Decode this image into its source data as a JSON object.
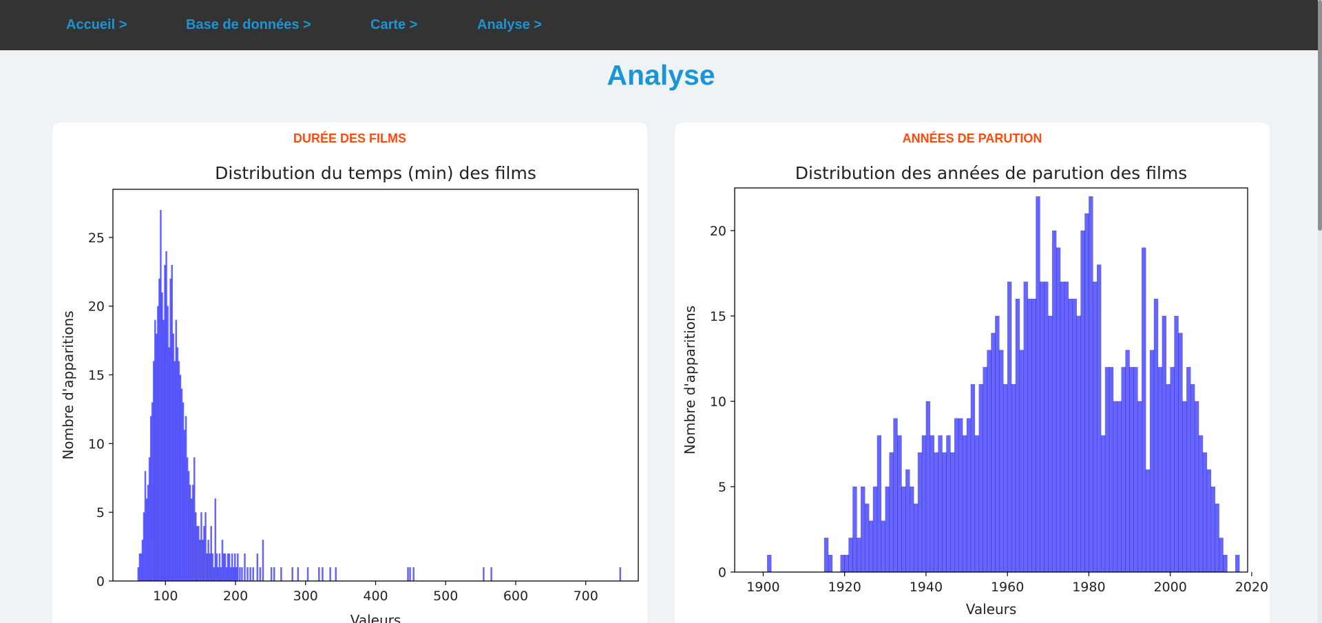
{
  "nav": {
    "items": [
      {
        "label": "Accueil >"
      },
      {
        "label": "Base de données >"
      },
      {
        "label": "Carte >"
      },
      {
        "label": "Analyse >"
      }
    ]
  },
  "page": {
    "title": "Analyse"
  },
  "colors": {
    "nav_bg": "#333333",
    "link": "#1b95d4",
    "card_title": "#ff4a0a",
    "bar_fill": "#0000ff"
  },
  "cards": [
    {
      "title": "DURÉE DES FILMS"
    },
    {
      "title": "ANNÉES DE PARUTION"
    }
  ],
  "chart_data": [
    {
      "type": "bar",
      "title": "Distribution du temps (min) des films",
      "xlabel": "Valeurs",
      "ylabel": "Nombre d'apparitions",
      "xlim": [
        25,
        775
      ],
      "ylim": [
        0,
        28.5
      ],
      "xticks": [
        100,
        200,
        300,
        400,
        500,
        600,
        700
      ],
      "yticks": [
        0,
        5,
        10,
        15,
        20,
        25
      ],
      "bin_width": 2.5,
      "grid": false,
      "bars": [
        [
          60,
          1
        ],
        [
          62,
          2
        ],
        [
          64,
          2
        ],
        [
          66,
          3
        ],
        [
          68,
          5
        ],
        [
          70,
          8
        ],
        [
          72,
          6
        ],
        [
          74,
          7
        ],
        [
          76,
          9
        ],
        [
          78,
          12
        ],
        [
          80,
          13
        ],
        [
          82,
          16
        ],
        [
          84,
          19
        ],
        [
          86,
          18
        ],
        [
          88,
          20
        ],
        [
          90,
          22
        ],
        [
          92,
          27
        ],
        [
          94,
          21
        ],
        [
          96,
          19
        ],
        [
          98,
          23
        ],
        [
          100,
          24
        ],
        [
          102,
          20
        ],
        [
          104,
          17
        ],
        [
          106,
          22
        ],
        [
          108,
          23
        ],
        [
          110,
          18
        ],
        [
          112,
          16
        ],
        [
          114,
          19
        ],
        [
          116,
          17
        ],
        [
          118,
          16
        ],
        [
          120,
          15
        ],
        [
          122,
          14
        ],
        [
          124,
          13
        ],
        [
          126,
          11
        ],
        [
          128,
          12
        ],
        [
          130,
          9
        ],
        [
          132,
          8
        ],
        [
          134,
          7
        ],
        [
          136,
          6
        ],
        [
          138,
          7
        ],
        [
          140,
          9
        ],
        [
          142,
          5
        ],
        [
          144,
          4
        ],
        [
          146,
          4
        ],
        [
          148,
          3
        ],
        [
          150,
          5
        ],
        [
          152,
          3
        ],
        [
          154,
          4
        ],
        [
          156,
          5
        ],
        [
          158,
          2
        ],
        [
          160,
          3
        ],
        [
          162,
          2
        ],
        [
          164,
          4
        ],
        [
          166,
          2
        ],
        [
          168,
          1
        ],
        [
          170,
          6
        ],
        [
          172,
          2
        ],
        [
          174,
          1
        ],
        [
          176,
          2
        ],
        [
          178,
          1
        ],
        [
          180,
          3
        ],
        [
          182,
          2
        ],
        [
          184,
          2
        ],
        [
          186,
          1
        ],
        [
          188,
          2
        ],
        [
          190,
          2
        ],
        [
          192,
          1
        ],
        [
          194,
          2
        ],
        [
          196,
          1
        ],
        [
          198,
          2
        ],
        [
          200,
          1
        ],
        [
          202,
          2
        ],
        [
          205,
          1
        ],
        [
          208,
          1
        ],
        [
          212,
          2
        ],
        [
          216,
          1
        ],
        [
          220,
          1
        ],
        [
          224,
          1
        ],
        [
          230,
          2
        ],
        [
          234,
          1
        ],
        [
          238,
          3
        ],
        [
          250,
          1
        ],
        [
          254,
          1
        ],
        [
          264,
          1
        ],
        [
          280,
          1
        ],
        [
          288,
          1
        ],
        [
          302,
          1
        ],
        [
          318,
          1
        ],
        [
          323,
          1
        ],
        [
          334,
          1
        ],
        [
          342,
          1
        ],
        [
          445,
          1
        ],
        [
          448,
          1
        ],
        [
          453,
          1
        ],
        [
          553,
          1
        ],
        [
          564,
          1
        ],
        [
          748,
          1
        ]
      ]
    },
    {
      "type": "bar",
      "title": "Distribution des années de parution des films",
      "xlabel": "Valeurs",
      "ylabel": "Nombre d'apparitions",
      "xlim": [
        1893,
        2019
      ],
      "ylim": [
        0,
        22.5
      ],
      "xticks": [
        1900,
        1920,
        1940,
        1960,
        1980,
        2000,
        2020
      ],
      "yticks": [
        0,
        5,
        10,
        15,
        20
      ],
      "bin_width": 1,
      "grid": false,
      "bars": [
        [
          1901,
          1
        ],
        [
          1915,
          2
        ],
        [
          1916,
          1
        ],
        [
          1919,
          1
        ],
        [
          1920,
          1
        ],
        [
          1921,
          2
        ],
        [
          1922,
          5
        ],
        [
          1923,
          2
        ],
        [
          1924,
          5
        ],
        [
          1925,
          4
        ],
        [
          1926,
          3
        ],
        [
          1927,
          5
        ],
        [
          1928,
          8
        ],
        [
          1929,
          3
        ],
        [
          1930,
          5
        ],
        [
          1931,
          7
        ],
        [
          1932,
          9
        ],
        [
          1933,
          8
        ],
        [
          1934,
          5
        ],
        [
          1935,
          6
        ],
        [
          1936,
          5
        ],
        [
          1937,
          4
        ],
        [
          1938,
          7
        ],
        [
          1939,
          8
        ],
        [
          1940,
          10
        ],
        [
          1941,
          8
        ],
        [
          1942,
          7
        ],
        [
          1943,
          8
        ],
        [
          1944,
          7
        ],
        [
          1945,
          8
        ],
        [
          1946,
          7
        ],
        [
          1947,
          9
        ],
        [
          1948,
          9
        ],
        [
          1949,
          8
        ],
        [
          1950,
          9
        ],
        [
          1951,
          11
        ],
        [
          1952,
          8
        ],
        [
          1953,
          11
        ],
        [
          1954,
          12
        ],
        [
          1955,
          13
        ],
        [
          1956,
          14
        ],
        [
          1957,
          15
        ],
        [
          1958,
          13
        ],
        [
          1959,
          11
        ],
        [
          1960,
          17
        ],
        [
          1961,
          11
        ],
        [
          1962,
          16
        ],
        [
          1963,
          13
        ],
        [
          1964,
          17
        ],
        [
          1965,
          16
        ],
        [
          1966,
          16
        ],
        [
          1967,
          22
        ],
        [
          1968,
          17
        ],
        [
          1969,
          17
        ],
        [
          1970,
          15
        ],
        [
          1971,
          20
        ],
        [
          1972,
          19
        ],
        [
          1973,
          17
        ],
        [
          1974,
          17
        ],
        [
          1975,
          16
        ],
        [
          1976,
          16
        ],
        [
          1977,
          15
        ],
        [
          1978,
          20
        ],
        [
          1979,
          21
        ],
        [
          1980,
          22
        ],
        [
          1981,
          17
        ],
        [
          1982,
          18
        ],
        [
          1983,
          8
        ],
        [
          1984,
          12
        ],
        [
          1985,
          12
        ],
        [
          1986,
          10
        ],
        [
          1987,
          10
        ],
        [
          1988,
          12
        ],
        [
          1989,
          13
        ],
        [
          1990,
          12
        ],
        [
          1991,
          12
        ],
        [
          1992,
          10
        ],
        [
          1993,
          19
        ],
        [
          1994,
          6
        ],
        [
          1995,
          13
        ],
        [
          1996,
          16
        ],
        [
          1997,
          12
        ],
        [
          1998,
          15
        ],
        [
          1999,
          11
        ],
        [
          2000,
          12
        ],
        [
          2001,
          15
        ],
        [
          2002,
          14
        ],
        [
          2003,
          10
        ],
        [
          2004,
          12
        ],
        [
          2005,
          11
        ],
        [
          2006,
          10
        ],
        [
          2007,
          8
        ],
        [
          2008,
          7
        ],
        [
          2009,
          6
        ],
        [
          2010,
          5
        ],
        [
          2011,
          4
        ],
        [
          2012,
          2
        ],
        [
          2013,
          1
        ],
        [
          2016,
          1
        ]
      ]
    }
  ]
}
